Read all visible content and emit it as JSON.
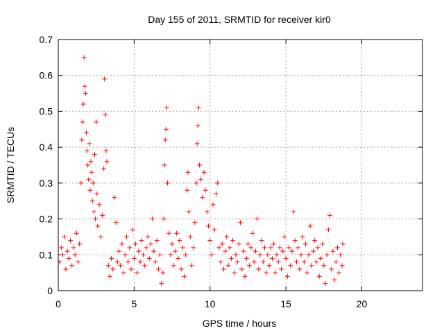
{
  "chart_data": {
    "type": "scatter",
    "title": "Day 155 of 2011, SRMTID for receiver kir0",
    "xlabel": "GPS time / hours",
    "ylabel": "SRMTID / TECUs",
    "xlim": [
      0,
      24
    ],
    "ylim": [
      0,
      0.7
    ],
    "xticks": [
      0,
      5,
      10,
      15,
      20
    ],
    "yticks": [
      0,
      0.1,
      0.2,
      0.3,
      0.4,
      0.5,
      0.6,
      0.7
    ],
    "grid": true,
    "marker": "+",
    "colors": {
      "series": "#ff0000"
    },
    "series": [
      {
        "points": [
          [
            0.1,
            0.08
          ],
          [
            0.2,
            0.12
          ],
          [
            0.3,
            0.1
          ],
          [
            0.4,
            0.15
          ],
          [
            0.5,
            0.06
          ],
          [
            0.6,
            0.11
          ],
          [
            0.7,
            0.09
          ],
          [
            0.8,
            0.14
          ],
          [
            0.9,
            0.07
          ],
          [
            1.0,
            0.12
          ],
          [
            1.1,
            0.1
          ],
          [
            1.2,
            0.16
          ],
          [
            1.3,
            0.08
          ],
          [
            1.4,
            0.13
          ],
          [
            1.5,
            0.3
          ],
          [
            1.55,
            0.42
          ],
          [
            1.6,
            0.47
          ],
          [
            1.65,
            0.52
          ],
          [
            1.7,
            0.65
          ],
          [
            1.75,
            0.57
          ],
          [
            1.8,
            0.55
          ],
          [
            1.85,
            0.44
          ],
          [
            1.9,
            0.39
          ],
          [
            1.95,
            0.35
          ],
          [
            2.0,
            0.31
          ],
          [
            2.05,
            0.41
          ],
          [
            2.1,
            0.28
          ],
          [
            2.15,
            0.36
          ],
          [
            2.2,
            0.33
          ],
          [
            2.25,
            0.25
          ],
          [
            2.3,
            0.3
          ],
          [
            2.35,
            0.22
          ],
          [
            2.4,
            0.38
          ],
          [
            2.45,
            0.2
          ],
          [
            2.5,
            0.47
          ],
          [
            2.55,
            0.27
          ],
          [
            2.6,
            0.18
          ],
          [
            2.7,
            0.24
          ],
          [
            2.8,
            0.15
          ],
          [
            2.9,
            0.21
          ],
          [
            3.0,
            0.34
          ],
          [
            3.05,
            0.59
          ],
          [
            3.1,
            0.49
          ],
          [
            3.15,
            0.39
          ],
          [
            3.2,
            0.36
          ],
          [
            3.3,
            0.07
          ],
          [
            3.4,
            0.04
          ],
          [
            3.5,
            0.09
          ],
          [
            3.6,
            0.06
          ],
          [
            3.7,
            0.26
          ],
          [
            3.8,
            0.19
          ],
          [
            3.9,
            0.08
          ],
          [
            4.0,
            0.11
          ],
          [
            4.1,
            0.07
          ],
          [
            4.2,
            0.13
          ],
          [
            4.3,
            0.05
          ],
          [
            4.4,
            0.1
          ],
          [
            4.5,
            0.15
          ],
          [
            4.6,
            0.08
          ],
          [
            4.7,
            0.12
          ],
          [
            4.8,
            0.06
          ],
          [
            4.9,
            0.17
          ],
          [
            5.0,
            0.09
          ],
          [
            5.1,
            0.13
          ],
          [
            5.2,
            0.05
          ],
          [
            5.3,
            0.11
          ],
          [
            5.4,
            0.08
          ],
          [
            5.5,
            0.14
          ],
          [
            5.6,
            0.1
          ],
          [
            5.7,
            0.07
          ],
          [
            5.8,
            0.12
          ],
          [
            5.9,
            0.15
          ],
          [
            6.0,
            0.09
          ],
          [
            6.1,
            0.13
          ],
          [
            6.2,
            0.2
          ],
          [
            6.3,
            0.11
          ],
          [
            6.4,
            0.08
          ],
          [
            6.5,
            0.14
          ],
          [
            6.6,
            0.06
          ],
          [
            6.7,
            0.1
          ],
          [
            6.8,
            0.02
          ],
          [
            6.9,
            0.05
          ],
          [
            6.95,
            0.2
          ],
          [
            7.0,
            0.35
          ],
          [
            7.05,
            0.42
          ],
          [
            7.1,
            0.45
          ],
          [
            7.15,
            0.51
          ],
          [
            7.2,
            0.3
          ],
          [
            7.3,
            0.16
          ],
          [
            7.4,
            0.1
          ],
          [
            7.5,
            0.13
          ],
          [
            7.6,
            0.07
          ],
          [
            7.7,
            0.11
          ],
          [
            7.8,
            0.16
          ],
          [
            7.9,
            0.09
          ],
          [
            8.0,
            0.14
          ],
          [
            8.1,
            0.06
          ],
          [
            8.2,
            0.12
          ],
          [
            8.3,
            0.04
          ],
          [
            8.4,
            0.1
          ],
          [
            8.5,
            0.28
          ],
          [
            8.55,
            0.33
          ],
          [
            8.6,
            0.22
          ],
          [
            8.7,
            0.15
          ],
          [
            8.8,
            0.07
          ],
          [
            8.9,
            0.12
          ],
          [
            9.0,
            0.19
          ],
          [
            9.1,
            0.3
          ],
          [
            9.15,
            0.41
          ],
          [
            9.2,
            0.46
          ],
          [
            9.25,
            0.51
          ],
          [
            9.3,
            0.35
          ],
          [
            9.4,
            0.31
          ],
          [
            9.5,
            0.26
          ],
          [
            9.6,
            0.33
          ],
          [
            9.7,
            0.28
          ],
          [
            9.8,
            0.22
          ],
          [
            9.9,
            0.18
          ],
          [
            10.0,
            0.14
          ],
          [
            10.1,
            0.1
          ],
          [
            10.2,
            0.24
          ],
          [
            10.3,
            0.17
          ],
          [
            10.4,
            0.27
          ],
          [
            10.5,
            0.3
          ],
          [
            10.6,
            0.12
          ],
          [
            10.7,
            0.08
          ],
          [
            10.8,
            0.13
          ],
          [
            10.9,
            0.06
          ],
          [
            11.0,
            0.11
          ],
          [
            11.1,
            0.15
          ],
          [
            11.2,
            0.07
          ],
          [
            11.3,
            0.12
          ],
          [
            11.4,
            0.09
          ],
          [
            11.5,
            0.14
          ],
          [
            11.6,
            0.05
          ],
          [
            11.7,
            0.1
          ],
          [
            11.8,
            0.08
          ],
          [
            11.9,
            0.13
          ],
          [
            12.0,
            0.19
          ],
          [
            12.1,
            0.06
          ],
          [
            12.2,
            0.11
          ],
          [
            12.3,
            0.04
          ],
          [
            12.4,
            0.09
          ],
          [
            12.5,
            0.13
          ],
          [
            12.6,
            0.07
          ],
          [
            12.7,
            0.12
          ],
          [
            12.8,
            0.16
          ],
          [
            12.9,
            0.08
          ],
          [
            13.0,
            0.11
          ],
          [
            13.1,
            0.2
          ],
          [
            13.2,
            0.06
          ],
          [
            13.3,
            0.1
          ],
          [
            13.4,
            0.14
          ],
          [
            13.5,
            0.08
          ],
          [
            13.6,
            0.12
          ],
          [
            13.7,
            0.05
          ],
          [
            13.8,
            0.1
          ],
          [
            13.9,
            0.07
          ],
          [
            14.0,
            0.12
          ],
          [
            14.1,
            0.09
          ],
          [
            14.2,
            0.13
          ],
          [
            14.3,
            0.05
          ],
          [
            14.4,
            0.1
          ],
          [
            14.5,
            0.08
          ],
          [
            14.6,
            0.12
          ],
          [
            14.7,
            0.06
          ],
          [
            14.8,
            0.11
          ],
          [
            14.9,
            0.15
          ],
          [
            15.0,
            0.09
          ],
          [
            15.1,
            0.04
          ],
          [
            15.2,
            0.12
          ],
          [
            15.3,
            0.07
          ],
          [
            15.4,
            0.11
          ],
          [
            15.5,
            0.22
          ],
          [
            15.6,
            0.14
          ],
          [
            15.7,
            0.08
          ],
          [
            15.8,
            0.12
          ],
          [
            15.9,
            0.06
          ],
          [
            16.0,
            0.1
          ],
          [
            16.1,
            0.15
          ],
          [
            16.2,
            0.08
          ],
          [
            16.3,
            0.13
          ],
          [
            16.4,
            0.05
          ],
          [
            16.5,
            0.1
          ],
          [
            16.6,
            0.18
          ],
          [
            16.7,
            0.07
          ],
          [
            16.8,
            0.11
          ],
          [
            16.9,
            0.14
          ],
          [
            17.0,
            0.08
          ],
          [
            17.1,
            0.12
          ],
          [
            17.2,
            0.04
          ],
          [
            17.3,
            0.09
          ],
          [
            17.4,
            0.13
          ],
          [
            17.5,
            0.07
          ],
          [
            17.6,
            0.02
          ],
          [
            17.7,
            0.1
          ],
          [
            17.8,
            0.17
          ],
          [
            17.9,
            0.21
          ],
          [
            18.0,
            0.06
          ],
          [
            18.1,
            0.11
          ],
          [
            18.2,
            0.03
          ],
          [
            18.3,
            0.08
          ],
          [
            18.4,
            0.12
          ],
          [
            18.5,
            0.05
          ],
          [
            18.6,
            0.1
          ],
          [
            18.7,
            0.07
          ],
          [
            18.75,
            0.13
          ]
        ]
      }
    ]
  }
}
